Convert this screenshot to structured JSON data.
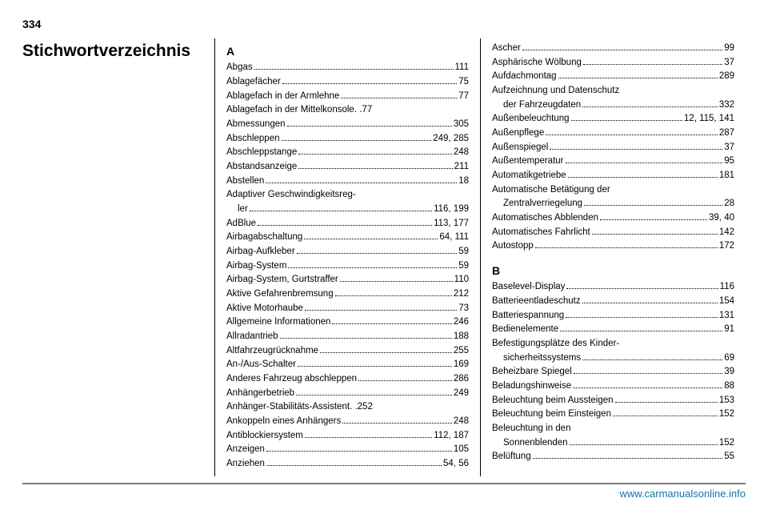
{
  "page_number": "334",
  "title": "Stichwortverzeichnis",
  "footer": "www.carmanualsonline.info",
  "colors": {
    "text": "#000000",
    "footer_link": "#1074a8",
    "rule": "#7a7a7a"
  },
  "column1": {
    "letter": "A",
    "entries": [
      {
        "label": "Abgas",
        "page": "111"
      },
      {
        "label": "Ablagefächer",
        "page": "75"
      },
      {
        "label": "Ablagefach in der Armlehne",
        "page": "77"
      },
      {
        "label": "Ablagefach in der Mittelkonsole",
        "page": "77",
        "nodots": true
      },
      {
        "label": "Abmessungen",
        "page": "305"
      },
      {
        "label": "Abschleppen",
        "page": "249, 285"
      },
      {
        "label": "Abschleppstange",
        "page": "248"
      },
      {
        "label": "Abstandsanzeige",
        "page": "211"
      },
      {
        "label": "Abstellen",
        "page": "18"
      },
      {
        "label": "Adaptiver Geschwindigkeitsreg-",
        "nopage": true
      },
      {
        "label": "ler",
        "page": "116, 199",
        "cont": true
      },
      {
        "label": "AdBlue",
        "page": "113, 177"
      },
      {
        "label": "Airbagabschaltung",
        "page": "64, 111"
      },
      {
        "label": "Airbag-Aufkleber",
        "page": "59"
      },
      {
        "label": "Airbag-System",
        "page": "59"
      },
      {
        "label": "Airbag-System, Gurtstraffer",
        "page": "110"
      },
      {
        "label": "Aktive Gefahrenbremsung",
        "page": "212"
      },
      {
        "label": "Aktive Motorhaube",
        "page": "73"
      },
      {
        "label": "Allgemeine Informationen",
        "page": "246"
      },
      {
        "label": "Allradantrieb",
        "page": "188"
      },
      {
        "label": "Altfahrzeugrücknahme",
        "page": "255"
      },
      {
        "label": "An-/Aus-Schalter",
        "page": "169"
      },
      {
        "label": "Anderes Fahrzeug abschleppen",
        "page": "286"
      },
      {
        "label": "Anhängerbetrieb",
        "page": "249"
      },
      {
        "label": "Anhänger-Stabilitäts-Assistent",
        "page": "252",
        "nodots": true
      },
      {
        "label": "Ankoppeln eines Anhängers",
        "page": "248"
      },
      {
        "label": "Antiblockiersystem",
        "page": "112, 187"
      },
      {
        "label": "Anzeigen",
        "page": "105"
      },
      {
        "label": "Anziehen",
        "page": "54, 56"
      }
    ]
  },
  "column2": {
    "entries1": [
      {
        "label": "Ascher",
        "page": "99"
      },
      {
        "label": "Asphärische Wölbung",
        "page": "37"
      },
      {
        "label": "Aufdachmontag",
        "page": "289"
      },
      {
        "label": "Aufzeichnung und Datenschutz",
        "nopage": true
      },
      {
        "label": "der Fahrzeugdaten",
        "page": "332",
        "cont": true
      },
      {
        "label": "Außenbeleuchtung",
        "page": "12, 115, 141"
      },
      {
        "label": "Außenpflege",
        "page": "287"
      },
      {
        "label": "Außenspiegel",
        "page": "37"
      },
      {
        "label": "Außentemperatur",
        "page": "95"
      },
      {
        "label": "Automatikgetriebe",
        "page": "181"
      },
      {
        "label": "Automatische Betätigung der",
        "nopage": true
      },
      {
        "label": "Zentralverriegelung",
        "page": "28",
        "cont": true
      },
      {
        "label": "Automatisches Abblenden",
        "page": "39, 40"
      },
      {
        "label": "Automatisches Fahrlicht",
        "page": "142"
      },
      {
        "label": "Autostopp",
        "page": "172"
      }
    ],
    "letter": "B",
    "entries2": [
      {
        "label": "Baselevel-Display",
        "page": "116"
      },
      {
        "label": "Batterieentladeschutz",
        "page": "154"
      },
      {
        "label": "Batteriespannung",
        "page": "131"
      },
      {
        "label": "Bedienelemente",
        "page": "91"
      },
      {
        "label": "Befestigungsplätze des Kinder-",
        "nopage": true
      },
      {
        "label": "sicherheitssystems",
        "page": "69",
        "cont": true
      },
      {
        "label": "Beheizbare Spiegel",
        "page": "39"
      },
      {
        "label": "Beladungshinweise",
        "page": "88"
      },
      {
        "label": "Beleuchtung beim Aussteigen",
        "page": "153"
      },
      {
        "label": "Beleuchtung beim Einsteigen",
        "page": "152"
      },
      {
        "label": "Beleuchtung in den",
        "nopage": true
      },
      {
        "label": "Sonnenblenden",
        "page": "152",
        "cont": true
      },
      {
        "label": "Belüftung",
        "page": "55"
      }
    ]
  }
}
